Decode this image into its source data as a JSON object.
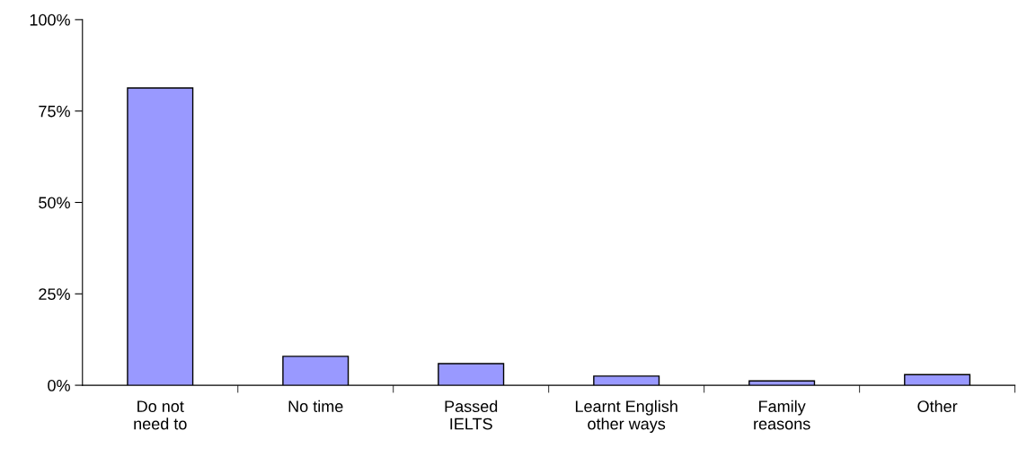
{
  "chart_data": {
    "type": "bar",
    "categories": [
      "Do not\nneed to",
      "No time",
      "Passed\nIELTS",
      "Learnt English\nother ways",
      "Family\nreasons",
      "Other"
    ],
    "values": [
      81.3,
      7.9,
      5.9,
      2.5,
      1.2,
      2.9
    ],
    "color": "#9999ff",
    "ylim": [
      0,
      100
    ],
    "yticks": [
      {
        "value": 0,
        "label": "0%"
      },
      {
        "value": 25,
        "label": "25%"
      },
      {
        "value": 50,
        "label": "50%"
      },
      {
        "value": 75,
        "label": "75%"
      },
      {
        "value": 100,
        "label": "100%"
      }
    ],
    "grid": false,
    "legend": false
  }
}
